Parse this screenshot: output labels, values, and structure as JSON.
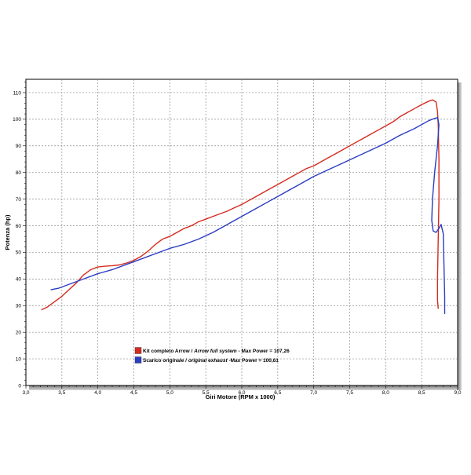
{
  "chart_data": {
    "type": "line",
    "xlabel": "Giri Motore (RPM x 1000)",
    "ylabel": "Potenza (hp)",
    "xlim": [
      3.0,
      9.0
    ],
    "ylim": [
      0,
      115
    ],
    "x_ticks": [
      3.0,
      3.5,
      4.0,
      4.5,
      5.0,
      5.5,
      6.0,
      6.5,
      7.0,
      7.5,
      8.0,
      8.5,
      9.0
    ],
    "x_tick_labels": [
      "3,0",
      "3,5",
      "4,0",
      "4,5",
      "5,0",
      "5,5",
      "6,0",
      "6,5",
      "7,0",
      "7,5",
      "8,0",
      "8,5",
      "9,0"
    ],
    "y_ticks": [
      0,
      10,
      20,
      30,
      40,
      50,
      60,
      70,
      80,
      90,
      100,
      110
    ],
    "grid": true,
    "legend_position": "bottom-left",
    "series": [
      {
        "legend_parts": [
          "Kit completo Arrow / ",
          "Arrow full system",
          " - Max Power = 107,26"
        ],
        "color": "#d42b1e",
        "x": [
          3.22,
          3.3,
          3.4,
          3.5,
          3.6,
          3.7,
          3.8,
          3.9,
          4.0,
          4.1,
          4.2,
          4.3,
          4.4,
          4.5,
          4.6,
          4.7,
          4.8,
          4.9,
          5.0,
          5.1,
          5.2,
          5.3,
          5.4,
          5.5,
          5.6,
          5.7,
          5.8,
          5.9,
          6.0,
          6.1,
          6.2,
          6.3,
          6.4,
          6.5,
          6.6,
          6.7,
          6.8,
          6.9,
          7.0,
          7.1,
          7.2,
          7.3,
          7.4,
          7.5,
          7.6,
          7.7,
          7.8,
          7.9,
          8.0,
          8.1,
          8.2,
          8.3,
          8.4,
          8.5,
          8.6,
          8.65,
          8.7,
          8.72,
          8.73,
          8.74,
          8.74,
          8.73,
          8.72,
          8.72,
          8.73
        ],
        "y": [
          28.5,
          29.5,
          31.5,
          33.5,
          36,
          38.5,
          41.5,
          43.5,
          44.5,
          44.8,
          45,
          45.3,
          46,
          47,
          48.5,
          50.5,
          53,
          55,
          56,
          57.5,
          59,
          60,
          61.5,
          62.5,
          63.5,
          64.5,
          65.5,
          66.8,
          68,
          69.5,
          71,
          72.5,
          74,
          75.5,
          77,
          78.5,
          80,
          81.5,
          82.5,
          84,
          85.5,
          87,
          88.5,
          90,
          91.5,
          93,
          94.5,
          96,
          97.5,
          99,
          101,
          102.5,
          104,
          105.5,
          106.8,
          107.26,
          106.5,
          103,
          98,
          85,
          70,
          55,
          40,
          32,
          29
        ]
      },
      {
        "legend_parts": [
          "Scarico originale / ",
          "original exhaust",
          " -Max Power = 100,61"
        ],
        "color": "#2b3cc4",
        "x": [
          3.35,
          3.45,
          3.6,
          3.8,
          4.0,
          4.2,
          4.4,
          4.6,
          4.8,
          5.0,
          5.2,
          5.4,
          5.6,
          5.8,
          6.0,
          6.2,
          6.4,
          6.6,
          6.8,
          7.0,
          7.2,
          7.4,
          7.6,
          7.8,
          8.0,
          8.2,
          8.4,
          8.6,
          8.68,
          8.72,
          8.74,
          8.72,
          8.68,
          8.65,
          8.64,
          8.66,
          8.7,
          8.74,
          8.77,
          8.8,
          8.81,
          8.82,
          8.82
        ],
        "y": [
          36,
          36.5,
          38,
          40,
          42,
          43.5,
          45.5,
          47.5,
          49.5,
          51.5,
          53,
          55,
          57.5,
          60.5,
          63.5,
          66.5,
          69.5,
          72.5,
          75.5,
          78.5,
          81,
          83.5,
          86,
          88.5,
          91,
          94,
          96.5,
          99.5,
          100.3,
          100.61,
          98,
          90,
          80,
          70,
          62,
          58,
          57.5,
          59,
          60.5,
          57,
          45,
          33,
          27
        ]
      }
    ]
  }
}
